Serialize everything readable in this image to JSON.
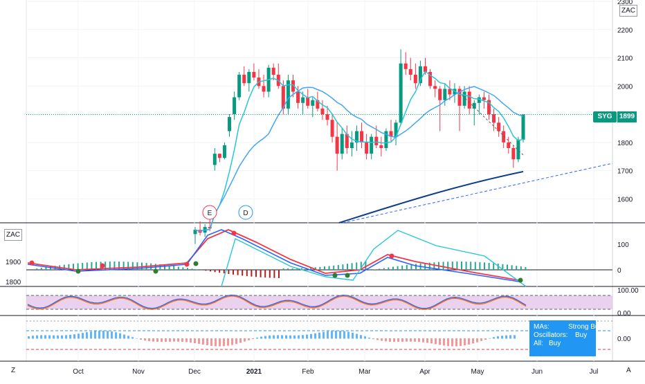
{
  "symbol": "ZAC",
  "price_label": {
    "name": "SYG",
    "value": "1899"
  },
  "chart_data": {
    "type": "candlestick",
    "y_ticks": [
      "2300",
      "2200",
      "2100",
      "2000",
      "1900",
      "1800",
      "1700",
      "1600"
    ],
    "ylim": [
      1515,
      2305
    ],
    "months": [
      "Oct",
      "Nov",
      "Dec",
      "2021",
      "Feb",
      "Mar",
      "Apr",
      "May",
      "Jun",
      "Jul"
    ],
    "current_price": 1899,
    "candles": [
      [
        1475,
        1500,
        1440,
        1490
      ],
      [
        1490,
        1520,
        1470,
        1480
      ],
      [
        1480,
        1510,
        1465,
        1500
      ],
      [
        1500,
        1530,
        1485,
        1495
      ],
      [
        1720,
        1780,
        1700,
        1760
      ],
      [
        1760,
        1760,
        1730,
        1745
      ],
      [
        1745,
        1800,
        1740,
        1790
      ],
      [
        1840,
        1900,
        1820,
        1890
      ],
      [
        1900,
        1980,
        1880,
        1960
      ],
      [
        1960,
        2050,
        1950,
        2040
      ],
      [
        2040,
        2070,
        2000,
        2010
      ],
      [
        2010,
        2060,
        1980,
        2050
      ],
      [
        2050,
        2080,
        2020,
        2030
      ],
      [
        2030,
        2060,
        1990,
        2000
      ],
      [
        2000,
        2040,
        1960,
        1980
      ],
      [
        1980,
        2075,
        1960,
        2065
      ],
      [
        2065,
        2080,
        2020,
        2040
      ],
      [
        2040,
        2080,
        1990,
        2000
      ],
      [
        2000,
        2020,
        1900,
        1920
      ],
      [
        1920,
        2040,
        1900,
        2020
      ],
      [
        2020,
        2040,
        1960,
        1980
      ],
      [
        1980,
        2000,
        1920,
        1940
      ],
      [
        1940,
        1980,
        1900,
        1960
      ],
      [
        1960,
        1990,
        1920,
        1930
      ],
      [
        1930,
        1960,
        1890,
        1950
      ],
      [
        1950,
        1980,
        1910,
        1920
      ],
      [
        1920,
        1950,
        1880,
        1900
      ],
      [
        1900,
        1930,
        1860,
        1880
      ],
      [
        1880,
        1900,
        1800,
        1820
      ],
      [
        1820,
        1870,
        1700,
        1760
      ],
      [
        1760,
        1850,
        1740,
        1830
      ],
      [
        1830,
        1860,
        1760,
        1780
      ],
      [
        1780,
        1840,
        1750,
        1800
      ],
      [
        1800,
        1860,
        1770,
        1840
      ],
      [
        1840,
        1870,
        1780,
        1800
      ],
      [
        1800,
        1830,
        1740,
        1760
      ],
      [
        1760,
        1830,
        1740,
        1820
      ],
      [
        1820,
        1860,
        1780,
        1790
      ],
      [
        1790,
        1820,
        1750,
        1780
      ],
      [
        1780,
        1850,
        1770,
        1840
      ],
      [
        1840,
        1880,
        1800,
        1820
      ],
      [
        1820,
        1880,
        1790,
        1870
      ],
      [
        1870,
        2130,
        1860,
        2080
      ],
      [
        2080,
        2120,
        2040,
        2060
      ],
      [
        2060,
        2100,
        2020,
        2040
      ],
      [
        2040,
        2080,
        1990,
        2010
      ],
      [
        2010,
        2090,
        2000,
        2070
      ],
      [
        2070,
        2100,
        2040,
        2050
      ],
      [
        2050,
        2060,
        1990,
        2000
      ],
      [
        2000,
        2020,
        1960,
        1990
      ],
      [
        1990,
        2000,
        1840,
        1950
      ],
      [
        1950,
        2010,
        1930,
        1990
      ],
      [
        1990,
        2020,
        1950,
        1970
      ],
      [
        1970,
        2010,
        1940,
        1990
      ],
      [
        1990,
        2000,
        1840,
        1930
      ],
      [
        1930,
        2000,
        1920,
        1980
      ],
      [
        1980,
        2000,
        1900,
        1920
      ],
      [
        1920,
        1950,
        1860,
        1940
      ],
      [
        1940,
        1970,
        1900,
        1960
      ],
      [
        1960,
        1980,
        1920,
        1950
      ],
      [
        1950,
        1970,
        1880,
        1900
      ],
      [
        1900,
        1920,
        1840,
        1870
      ],
      [
        1870,
        1890,
        1820,
        1840
      ],
      [
        1840,
        1860,
        1780,
        1800
      ],
      [
        1800,
        1820,
        1760,
        1780
      ],
      [
        1780,
        1790,
        1710,
        1740
      ],
      [
        1740,
        1820,
        1730,
        1810
      ],
      [
        1810,
        1900,
        1800,
        1899
      ]
    ],
    "x_axis_markers": [
      "E",
      "D"
    ],
    "macd_ticks": [
      "100",
      "0"
    ],
    "macd_left_ticks": [
      "1900",
      "1800"
    ],
    "rsi_ticks": [
      "100.00",
      "0.00"
    ],
    "ta_ticks": [
      "0.00"
    ]
  },
  "summary": {
    "mas_label": "MAs:",
    "mas_value": "Strong Buy",
    "osc_label": "Oscillators:",
    "osc_value": "Buy",
    "all_label": "All:",
    "all_value": "Buy"
  },
  "bottom_left": "Z",
  "bottom_right": "A",
  "colors": {
    "up": "#089981",
    "down": "#f23645",
    "ma_fast": "#26c6da",
    "ma_mid": "#42a5f5",
    "ma_slow": "#0d3e8c",
    "rsi_bg": "#e1bee7",
    "summary": "#2196f3"
  }
}
